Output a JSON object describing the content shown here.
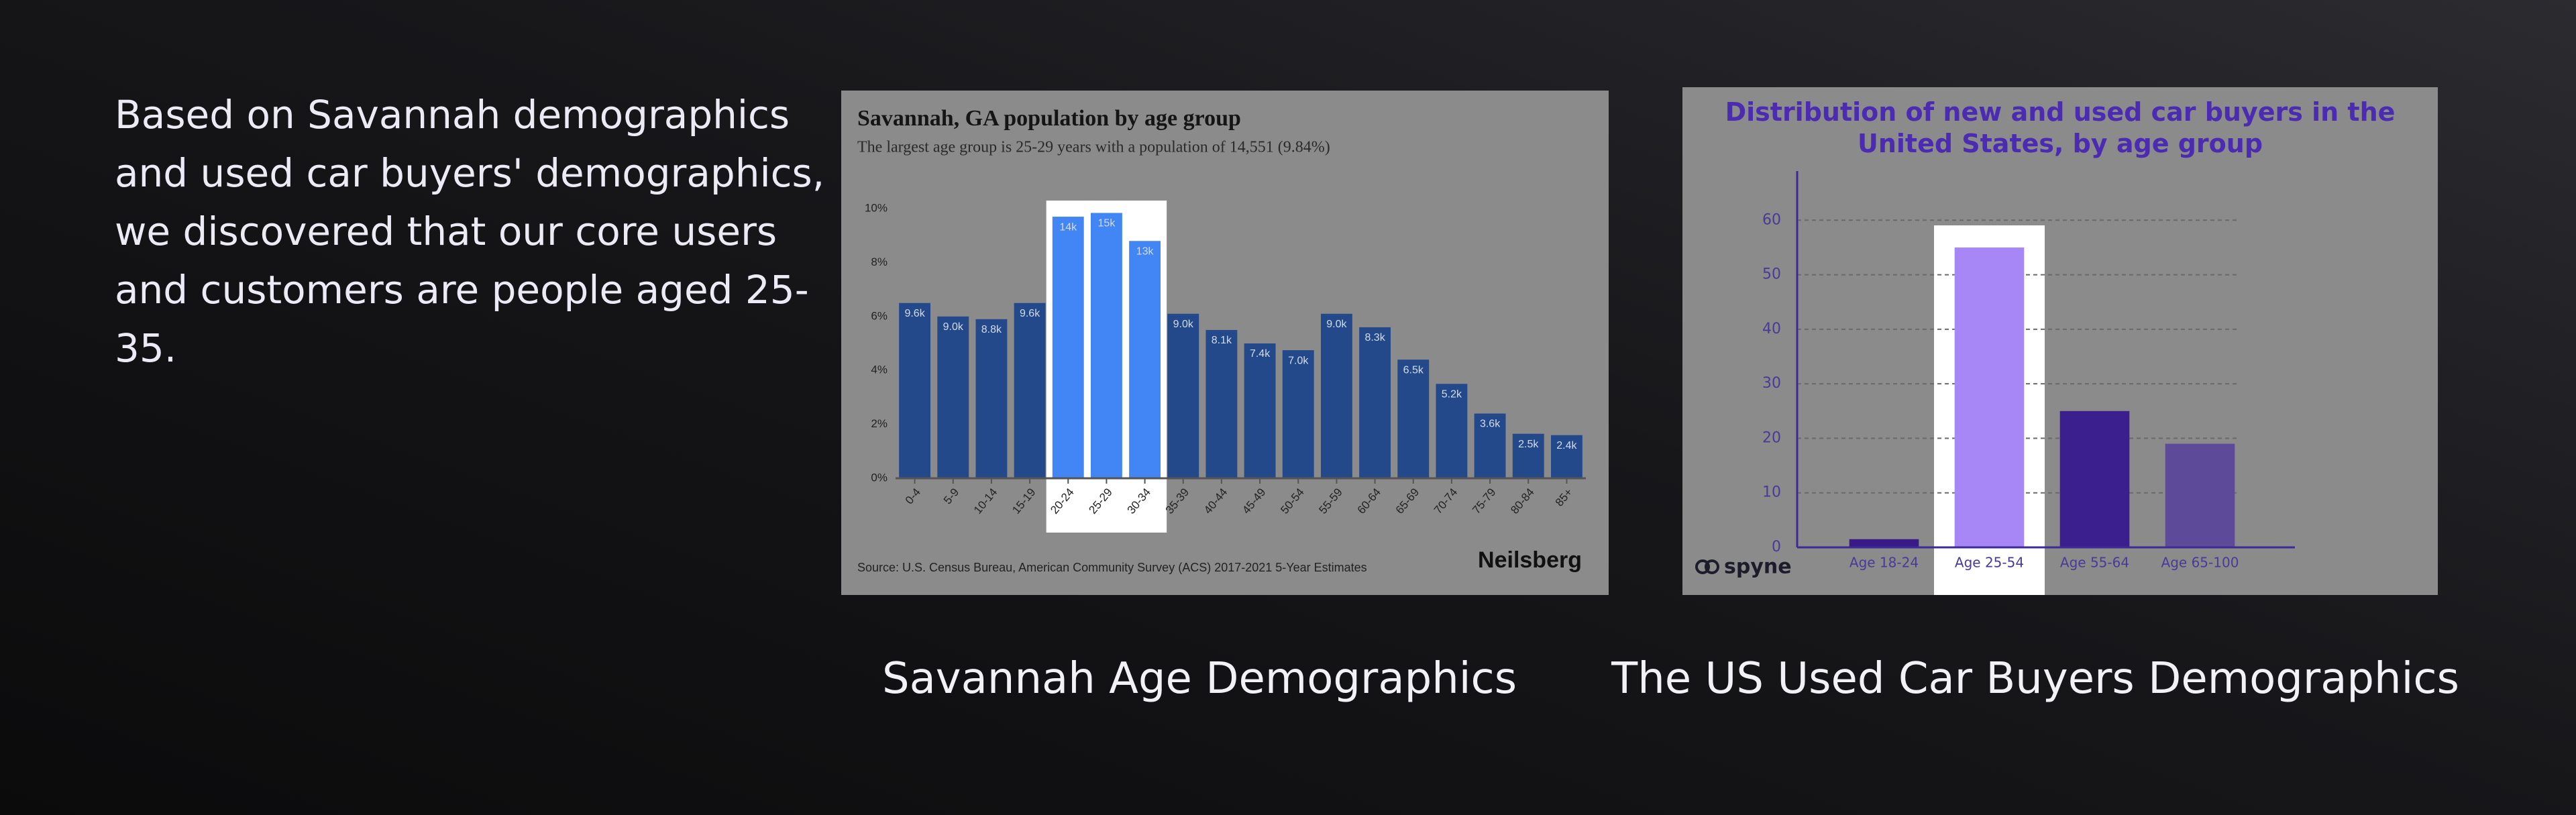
{
  "text": "Based on Savannah demographics and used car buyers' demographics, we discovered that our core users and customers are people aged 25-35.",
  "captions": [
    "Savannah Age Demographics",
    "The US Used Car Buyers Demographics"
  ],
  "chart_data": [
    {
      "type": "bar",
      "title": "Savannah, GA population by age group",
      "subtitle": "The largest age group is 25-29 years with a population of 14,551 (9.84%)",
      "categories": [
        "0-4",
        "5-9",
        "10-14",
        "15-19",
        "20-24",
        "25-29",
        "30-34",
        "35-39",
        "40-44",
        "45-49",
        "50-54",
        "55-59",
        "60-64",
        "65-69",
        "70-74",
        "75-79",
        "80-84",
        "85+"
      ],
      "values": [
        6.5,
        6.0,
        5.9,
        6.5,
        9.7,
        9.84,
        8.8,
        6.1,
        5.5,
        5.0,
        4.75,
        6.1,
        5.6,
        4.4,
        3.5,
        2.4,
        1.65,
        1.6
      ],
      "color": "#24498b",
      "colors": [
        "#24498b",
        "#24498b",
        "#24498b",
        "#24498b",
        "#4285f4",
        "#4285f4",
        "#4285f4",
        "#24498b",
        "#24498b",
        "#24498b",
        "#24498b",
        "#24498b",
        "#24498b",
        "#24498b",
        "#24498b",
        "#24498b",
        "#24498b",
        "#24498b"
      ],
      "highlighted": [
        4,
        5,
        6
      ],
      "population": {
        "values": [
          9600,
          9000,
          8800,
          9600,
          14000,
          14551,
          13000,
          9000,
          8100,
          7400,
          7000,
          9000,
          8300,
          6500,
          5200,
          3600,
          2500,
          2400
        ],
        "value_labels": [
          "9.6k",
          "9.0k",
          "8.8k",
          "9.6k",
          "14k",
          "15k",
          "13k",
          "9.0k",
          "8.1k",
          "7.4k",
          "7.0k",
          "9.0k",
          "8.3k",
          "6.5k",
          "5.2k",
          "3.6k",
          "2.5k",
          "2.4k"
        ]
      },
      "ylim": [
        0,
        10
      ],
      "yticks": [
        {
          "value": 0,
          "label": "0%"
        },
        {
          "value": 2,
          "label": "2%"
        },
        {
          "value": 4,
          "label": "4%"
        },
        {
          "value": 6,
          "label": "6%"
        },
        {
          "value": 8,
          "label": "8%"
        },
        {
          "value": 10,
          "label": "10%"
        }
      ],
      "grid": false,
      "source": "Source: U.S. Census Bureau, American Community Survey (ACS) 2017-2021 5-Year Estimates",
      "brand": "Neilsberg"
    },
    {
      "type": "bar",
      "title": "Distribution of new and used car buyers in the United States, by age group",
      "categories": [
        "Age 18-24",
        "Age 25-54",
        "Age 55-64",
        "Age 65-100"
      ],
      "values": [
        1.5,
        55,
        25,
        19
      ],
      "color": "#3c1f8e",
      "colors": [
        "#3a1a86",
        "#a787f5",
        "#3c1f8e",
        "#5d4a98"
      ],
      "highlighted": [
        1
      ],
      "ylim": [
        0,
        70
      ],
      "yticks": [
        0,
        10,
        20,
        30,
        40,
        50,
        60
      ],
      "grid": true,
      "brand": "spyne"
    }
  ]
}
